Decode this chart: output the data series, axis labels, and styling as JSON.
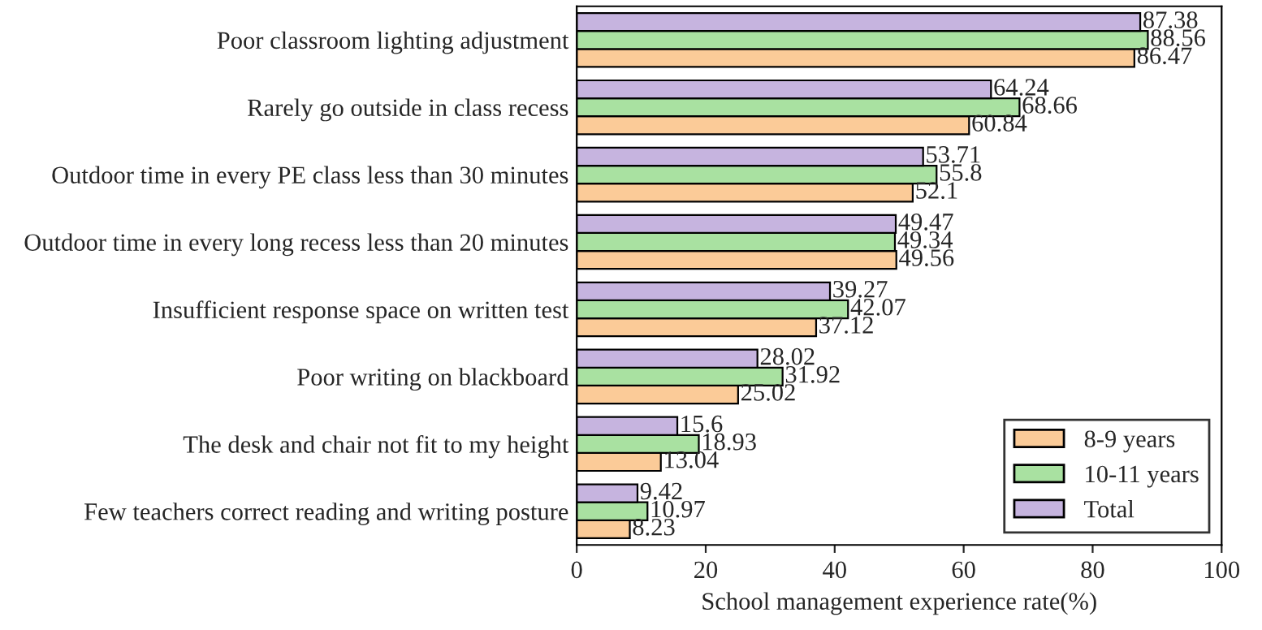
{
  "chart_data": {
    "type": "bar",
    "orientation": "horizontal",
    "xlabel": "School management experience rate(%)",
    "categories": [
      "Poor classroom lighting adjustment",
      "Rarely go outside in class recess",
      "Outdoor time in every PE class less than 30 minutes",
      "Outdoor time in every long recess less than 20 minutes",
      "Insufficient response space on written test",
      "Poor writing on blackboard",
      "The desk and chair not fit to my height",
      "Few teachers correct reading and writing posture"
    ],
    "series": [
      {
        "name": "8-9 years",
        "color": "#fbcb98",
        "values": [
          86.47,
          60.84,
          52.1,
          49.56,
          37.12,
          25.02,
          13.04,
          8.23
        ]
      },
      {
        "name": "10-11 years",
        "color": "#a9e1a1",
        "values": [
          88.56,
          68.66,
          55.8,
          49.34,
          42.07,
          31.92,
          18.93,
          10.97
        ]
      },
      {
        "name": "Total",
        "color": "#c6b4df",
        "values": [
          87.38,
          64.24,
          53.71,
          49.47,
          39.27,
          28.02,
          15.6,
          9.42
        ]
      }
    ],
    "xlim": [
      0,
      100
    ],
    "xticks": [
      0,
      20,
      40,
      60,
      80,
      100
    ],
    "data_labels": true,
    "legend": "bottom right",
    "grid": false
  }
}
